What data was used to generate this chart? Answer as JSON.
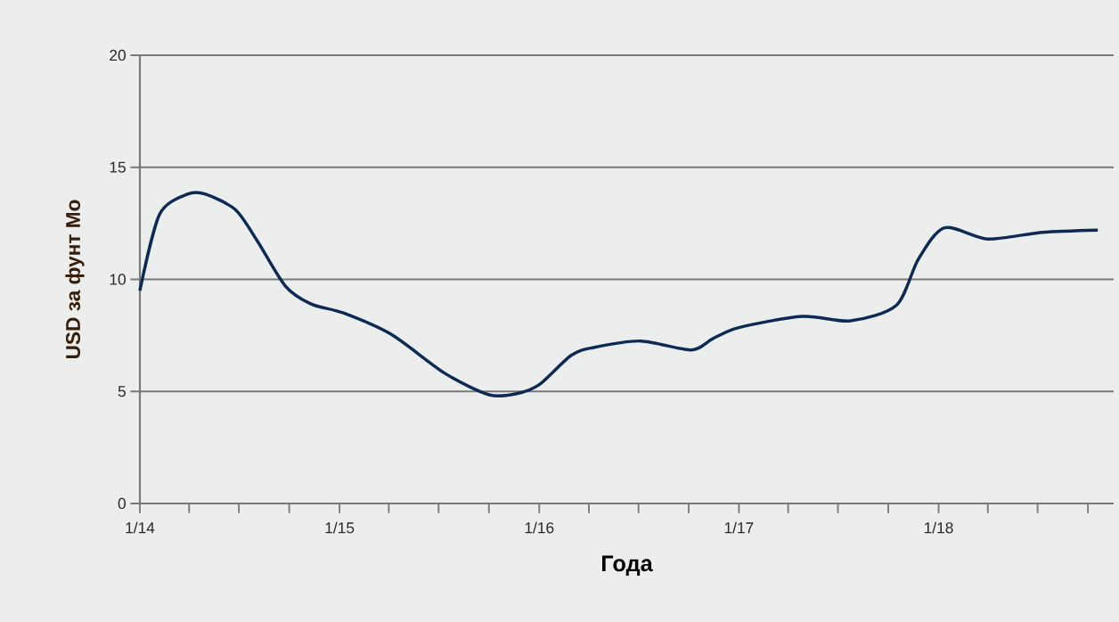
{
  "chart_data": {
    "type": "line",
    "xlabel": "Года",
    "ylabel": "USD за фунт Mo",
    "x": [
      "2014-01-01",
      "2014-02-06",
      "2014-03-29",
      "2014-05-01",
      "2014-06-25",
      "2014-08-04",
      "2014-09-24",
      "2014-11-10",
      "2015-01-08",
      "2015-04-05",
      "2015-07-13",
      "2015-10-01",
      "2015-11-21",
      "2016-01-01",
      "2016-02-28",
      "2016-04-08",
      "2016-07-05",
      "2016-10-05",
      "2016-11-14",
      "2017-01-01",
      "2017-04-27",
      "2017-07-24",
      "2017-10-16",
      "2017-11-25",
      "2018-01-12",
      "2018-04-01",
      "2018-07-09",
      "2018-10-19"
    ],
    "series": [
      {
        "color": "#0d2a55",
        "values": [
          9.5,
          12.9,
          13.8,
          13.8,
          13.1,
          11.7,
          9.7,
          8.9,
          8.5,
          7.55,
          5.8,
          4.85,
          4.9,
          5.3,
          6.6,
          6.95,
          7.25,
          6.85,
          7.35,
          7.85,
          8.35,
          8.15,
          8.85,
          10.9,
          12.3,
          11.8,
          12.1,
          12.2
        ]
      }
    ],
    "xlim": [
      "2014-01-01",
      "2018-11-17"
    ],
    "xticks": [
      {
        "value": "2014-01-01",
        "label": "1/14"
      },
      {
        "value": "2014-04-01",
        "label": null
      },
      {
        "value": "2014-07-01",
        "label": null
      },
      {
        "value": "2014-10-01",
        "label": null
      },
      {
        "value": "2015-01-01",
        "label": "1/15"
      },
      {
        "value": "2015-04-01",
        "label": null
      },
      {
        "value": "2015-07-01",
        "label": null
      },
      {
        "value": "2015-10-01",
        "label": null
      },
      {
        "value": "2016-01-01",
        "label": "1/16"
      },
      {
        "value": "2016-04-01",
        "label": null
      },
      {
        "value": "2016-07-01",
        "label": null
      },
      {
        "value": "2016-10-01",
        "label": null
      },
      {
        "value": "2017-01-01",
        "label": "1/17"
      },
      {
        "value": "2017-04-01",
        "label": null
      },
      {
        "value": "2017-07-01",
        "label": null
      },
      {
        "value": "2017-10-01",
        "label": null
      },
      {
        "value": "2018-01-01",
        "label": "1/18"
      },
      {
        "value": "2018-04-01",
        "label": null
      },
      {
        "value": "2018-07-01",
        "label": null
      },
      {
        "value": "2018-10-01",
        "label": null
      }
    ],
    "ylim": [
      0,
      20
    ],
    "yticks": [
      0,
      5,
      10,
      15,
      20
    ],
    "grid": "y",
    "marker": "none",
    "line_style": "solid"
  }
}
